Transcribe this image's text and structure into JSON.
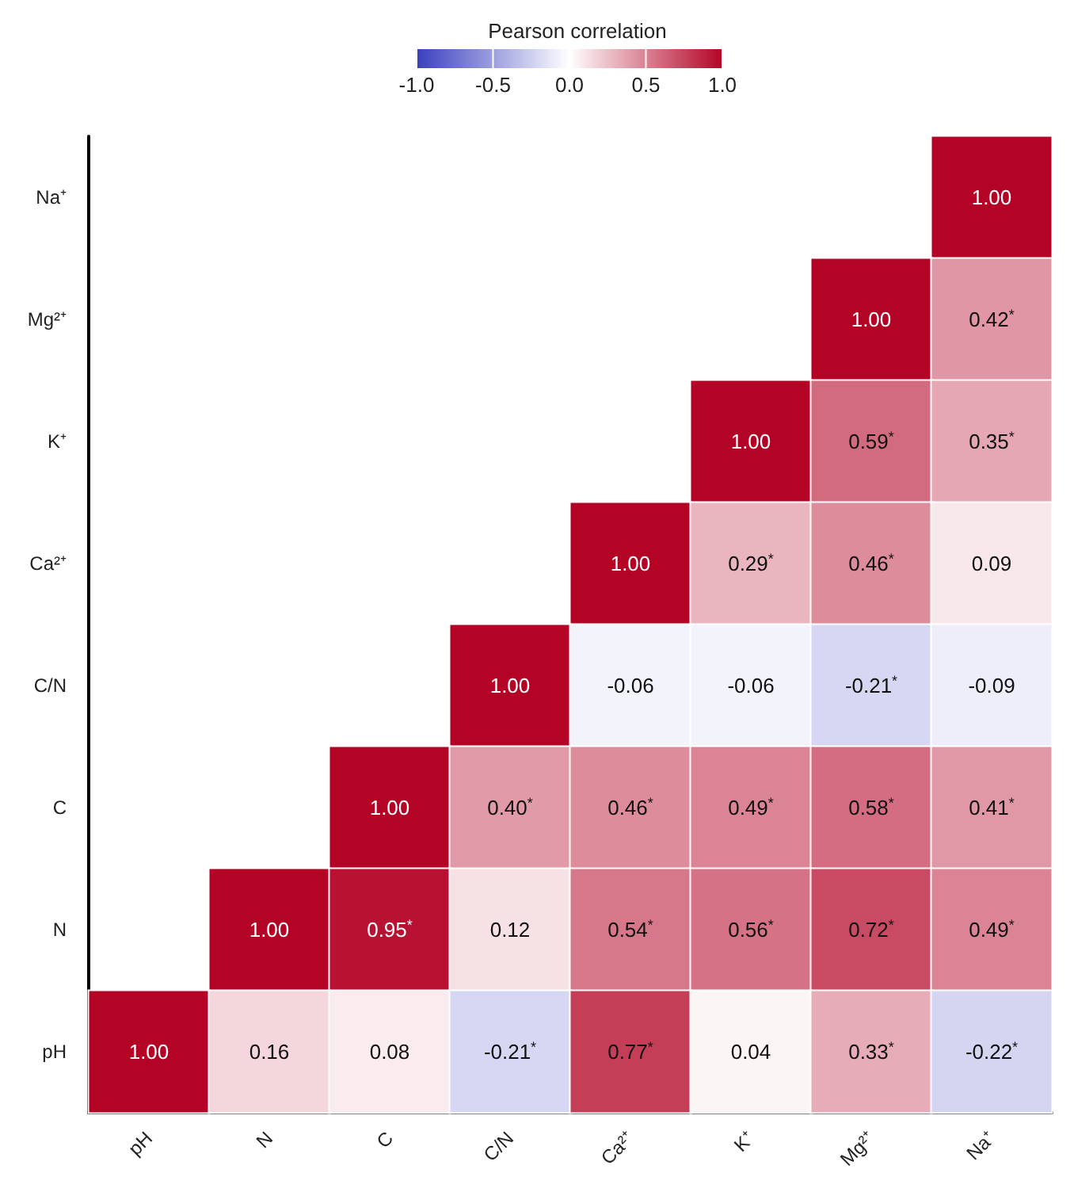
{
  "chart_data": {
    "type": "heatmap",
    "clabel": "Pearson correlation",
    "categories": [
      "pH",
      "N",
      "C",
      "C/N",
      "Ca²⁺",
      "K⁺",
      "Mg²⁺",
      "Na⁺"
    ],
    "y_categories": [
      "Na⁺",
      "Mg²⁺",
      "K⁺",
      "Ca²⁺",
      "C/N",
      "C",
      "N",
      "pH"
    ],
    "cells": [
      [
        null,
        null,
        null,
        null,
        null,
        null,
        null,
        1.0
      ],
      [
        null,
        null,
        null,
        null,
        null,
        null,
        1.0,
        0.42
      ],
      [
        null,
        null,
        null,
        null,
        null,
        1.0,
        0.59,
        0.35
      ],
      [
        null,
        null,
        null,
        null,
        1.0,
        0.29,
        0.46,
        0.09
      ],
      [
        null,
        null,
        null,
        1.0,
        -0.06,
        -0.06,
        -0.21,
        -0.09
      ],
      [
        null,
        null,
        1.0,
        0.4,
        0.46,
        0.49,
        0.58,
        0.41
      ],
      [
        null,
        1.0,
        0.95,
        0.12,
        0.54,
        0.56,
        0.72,
        0.49
      ],
      [
        1.0,
        0.16,
        0.08,
        -0.21,
        0.77,
        0.04,
        0.33,
        -0.22
      ]
    ],
    "cell_labels": [
      [
        null,
        null,
        null,
        null,
        null,
        null,
        null,
        "1.00"
      ],
      [
        null,
        null,
        null,
        null,
        null,
        null,
        "1.00",
        "0.42$^{*}$"
      ],
      [
        null,
        null,
        null,
        null,
        null,
        "1.00",
        "0.59$^{*}$",
        "0.35$^{*}$"
      ],
      [
        null,
        null,
        null,
        null,
        "1.00",
        "0.29$^{*}$",
        "0.46$^{*}$",
        "0.09"
      ],
      [
        null,
        null,
        null,
        "1.00",
        "-0.06",
        "-0.06",
        "-0.21$^{*}$",
        "-0.09"
      ],
      [
        null,
        null,
        "1.00",
        "0.40$^{*}$",
        "0.46$^{*}$",
        "0.49$^{*}$",
        "0.58$^{*}$",
        "0.41$^{*}$"
      ],
      [
        null,
        "1.00",
        "0.95$^{*}$",
        "0.12",
        "0.54$^{*}$",
        "0.56$^{*}$",
        "0.72$^{*}$",
        "0.49$^{*}$"
      ],
      [
        "1.00",
        "0.16",
        "0.08",
        "-0.21$^{*}$",
        "0.77$^{*}$",
        "0.04",
        "0.33$^{*}$",
        "-0.22$^{*}$"
      ]
    ],
    "clim": [
      -1.0,
      1.0
    ],
    "cticks": [
      {
        "value": -1,
        "label": "-1.0"
      },
      {
        "value": -0.5,
        "label": "-0.5"
      },
      {
        "value": 0,
        "label": "0.0"
      },
      {
        "value": 0.5,
        "label": "0.5"
      },
      {
        "value": 1,
        "label": "1.0"
      }
    ]
  }
}
